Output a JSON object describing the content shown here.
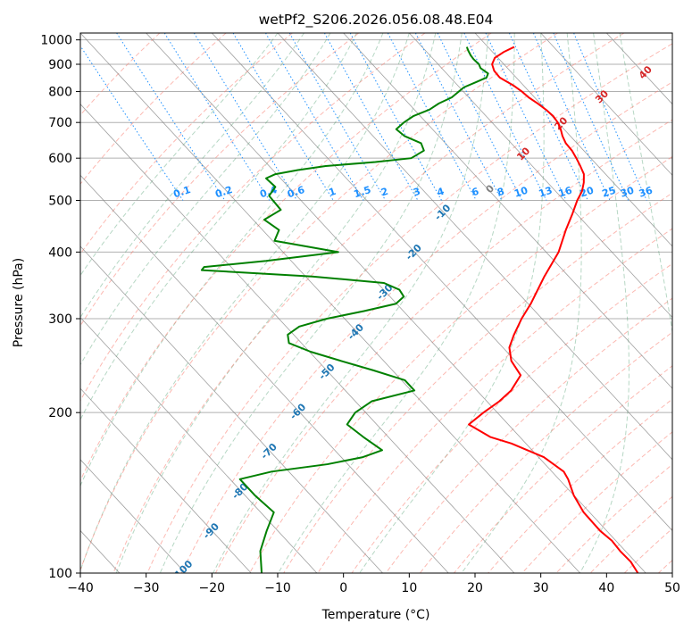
{
  "chart_data": {
    "type": "line",
    "chart_kind": "skew-t log-p",
    "title": "wetPf2_S206.2026.056.08.48.E04",
    "xlabel": "Temperature (°C)",
    "ylabel": "Pressure (hPa)",
    "xlim": [
      -40,
      50
    ],
    "ylim": [
      1030,
      100
    ],
    "y_scale": "log",
    "skew_degrees_per_decade": 75,
    "grid": true,
    "x_ticks": [
      -40,
      -30,
      -20,
      -10,
      0,
      10,
      20,
      30,
      40,
      50
    ],
    "y_ticks": [
      100,
      200,
      300,
      400,
      500,
      600,
      700,
      800,
      900,
      1000
    ],
    "series": [
      {
        "color": "#ff0000",
        "pressure": [
          970,
          950,
          925,
          900,
          875,
          850,
          820,
          800,
          780,
          760,
          740,
          720,
          700,
          680,
          660,
          640,
          620,
          600,
          580,
          560,
          540,
          520,
          500,
          470,
          440,
          400,
          360,
          320,
          300,
          280,
          265,
          250,
          235,
          220,
          210,
          200,
          190,
          180,
          175,
          165,
          155,
          150,
          140,
          130,
          120,
          115,
          110,
          105,
          100
        ],
        "temperature": [
          24.0,
          21.8,
          19.5,
          18.2,
          17.6,
          17.5,
          18.5,
          18.9,
          19.1,
          19.6,
          20.0,
          20.2,
          20.0,
          19.5,
          18.8,
          18.3,
          18.2,
          17.8,
          17.3,
          16.7,
          15.5,
          14.0,
          12.0,
          9.2,
          6.1,
          1.9,
          -3.7,
          -9.6,
          -13.1,
          -16.5,
          -19.0,
          -20.6,
          -21.2,
          -24.8,
          -28.1,
          -32.1,
          -36.0,
          -34.5,
          -32.2,
          -29.2,
          -28.2,
          -28.6,
          -30.0,
          -30.9,
          -31.0,
          -30.6,
          -30.8,
          -30.7,
          -31.2
        ]
      },
      {
        "color": "#008000",
        "pressure": [
          970,
          955,
          935,
          920,
          900,
          885,
          865,
          850,
          835,
          815,
          800,
          780,
          760,
          740,
          720,
          700,
          680,
          660,
          640,
          620,
          600,
          590,
          580,
          570,
          560,
          550,
          530,
          510,
          480,
          460,
          440,
          420,
          400,
          385,
          375,
          370,
          360,
          350,
          340,
          330,
          320,
          310,
          300,
          290,
          280,
          270,
          260,
          250,
          240,
          230,
          220,
          210,
          200,
          190,
          180,
          170,
          165,
          160,
          155,
          150,
          140,
          130,
          120,
          110,
          100
        ],
        "temperature": [
          16.8,
          16.5,
          16.2,
          16.1,
          16.2,
          15.9,
          16.3,
          15.5,
          13.5,
          10.7,
          9.3,
          7.4,
          4.6,
          2.3,
          -1.0,
          -3.4,
          -5.5,
          -5.2,
          -3.7,
          -4.3,
          -7.3,
          -13.3,
          -21.4,
          -26.2,
          -30.2,
          -32.2,
          -32.0,
          -34.2,
          -34.4,
          -38.3,
          -37.5,
          -39.7,
          -31.6,
          -43.8,
          -54.1,
          -54.9,
          -39.0,
          -29.0,
          -27.6,
          -27.9,
          -30.1,
          -36.0,
          -42.7,
          -48.0,
          -50.9,
          -51.9,
          -49.8,
          -46.5,
          -42.9,
          -39.5,
          -39.5,
          -47.5,
          -51.6,
          -54.5,
          -53.8,
          -52.8,
          -56.7,
          -63.1,
          -72.6,
          -78.5,
          -78.5,
          -78.0,
          -81.7,
          -85.5,
          -88.4
        ]
      }
    ],
    "background_lines": {
      "dry_adiabat_labels": [
        "-100",
        "-90",
        "-80",
        "-70",
        "-60",
        "-50",
        "-40",
        "-30",
        "-20",
        "-10",
        "0",
        "10",
        "20",
        "30",
        "40"
      ],
      "mixing_ratio_labels": [
        "0.1",
        "0.2",
        "0.4",
        "0.6",
        "1",
        "1.5",
        "2",
        "3",
        "4",
        "6",
        "8",
        "10",
        "13",
        "16",
        "20",
        "25",
        "30",
        "36"
      ],
      "mixing_ratio_values": [
        0.1,
        0.2,
        0.4,
        0.6,
        1,
        1.5,
        2,
        3,
        4,
        6,
        8,
        10,
        13,
        16,
        20,
        25,
        30,
        36
      ]
    },
    "colors": {
      "temperature": "#ff0000",
      "dewpoint": "#008000",
      "dry_adiabat": "#fa8072",
      "moist_adiabat": "#2e8b57",
      "mixing_ratio": "#1e90ff",
      "isotherm": "#808080"
    }
  }
}
